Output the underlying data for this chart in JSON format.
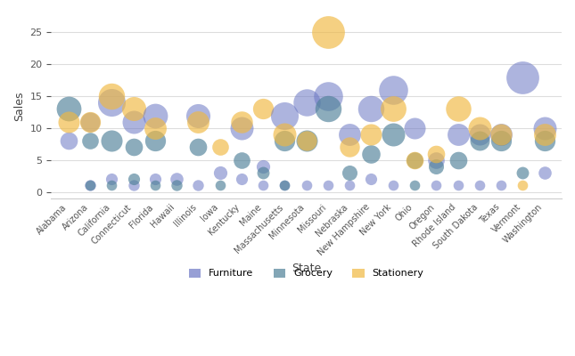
{
  "xlabel": "State",
  "ylabel": "Sales",
  "ylim": [
    -1,
    28
  ],
  "background_color": "#ffffff",
  "grid_color": "#dddddd",
  "categories": [
    "Alabama",
    "Arizona",
    "California",
    "Connecticut",
    "Florida",
    "Hawaii",
    "Illinois",
    "Iowa",
    "Kentucky",
    "Maine",
    "Massachusetts",
    "Minnesota",
    "Missouri",
    "Nebraska",
    "New Hampshire",
    "New York",
    "Ohio",
    "Oregon",
    "Rhode Island",
    "South Dakota",
    "Texas",
    "Vermont",
    "Washington"
  ],
  "furniture_color": "#6b77c4",
  "grocery_color": "#4e8098",
  "stationery_color": "#f0b840",
  "bubbles": [
    {
      "state": "Alabama",
      "category": "Furniture",
      "sales": 8,
      "size": 200
    },
    {
      "state": "Alabama",
      "category": "Grocery",
      "sales": 13,
      "size": 400
    },
    {
      "state": "Alabama",
      "category": "Stationery",
      "sales": 11,
      "size": 300
    },
    {
      "state": "Arizona",
      "category": "Furniture",
      "sales": 11,
      "size": 250
    },
    {
      "state": "Arizona",
      "category": "Grocery",
      "sales": 8,
      "size": 180
    },
    {
      "state": "Arizona",
      "category": "Stationery",
      "sales": 11,
      "size": 280
    },
    {
      "state": "Arizona",
      "category": "Furniture",
      "sales": 1,
      "size": 80
    },
    {
      "state": "Arizona",
      "category": "Grocery",
      "sales": 1,
      "size": 70
    },
    {
      "state": "California",
      "category": "Furniture",
      "sales": 14,
      "size": 500
    },
    {
      "state": "California",
      "category": "Grocery",
      "sales": 8,
      "size": 300
    },
    {
      "state": "California",
      "category": "Stationery",
      "sales": 15,
      "size": 450
    },
    {
      "state": "California",
      "category": "Furniture",
      "sales": 2,
      "size": 90
    },
    {
      "state": "California",
      "category": "Grocery",
      "sales": 1,
      "size": 70
    },
    {
      "state": "Connecticut",
      "category": "Furniture",
      "sales": 11,
      "size": 350
    },
    {
      "state": "Connecticut",
      "category": "Grocery",
      "sales": 7,
      "size": 200
    },
    {
      "state": "Connecticut",
      "category": "Stationery",
      "sales": 13,
      "size": 380
    },
    {
      "state": "Connecticut",
      "category": "Furniture",
      "sales": 1,
      "size": 80
    },
    {
      "state": "Connecticut",
      "category": "Grocery",
      "sales": 2,
      "size": 90
    },
    {
      "state": "Florida",
      "category": "Furniture",
      "sales": 12,
      "size": 400
    },
    {
      "state": "Florida",
      "category": "Grocery",
      "sales": 8,
      "size": 280
    },
    {
      "state": "Florida",
      "category": "Stationery",
      "sales": 10,
      "size": 320
    },
    {
      "state": "Florida",
      "category": "Furniture",
      "sales": 2,
      "size": 90
    },
    {
      "state": "Florida",
      "category": "Grocery",
      "sales": 1,
      "size": 70
    },
    {
      "state": "Hawaii",
      "category": "Furniture",
      "sales": 2,
      "size": 110
    },
    {
      "state": "Hawaii",
      "category": "Grocery",
      "sales": 1,
      "size": 80
    },
    {
      "state": "Illinois",
      "category": "Furniture",
      "sales": 12,
      "size": 380
    },
    {
      "state": "Illinois",
      "category": "Grocery",
      "sales": 7,
      "size": 200
    },
    {
      "state": "Illinois",
      "category": "Stationery",
      "sales": 11,
      "size": 320
    },
    {
      "state": "Illinois",
      "category": "Furniture",
      "sales": 1,
      "size": 80
    },
    {
      "state": "Iowa",
      "category": "Furniture",
      "sales": 3,
      "size": 120
    },
    {
      "state": "Iowa",
      "category": "Grocery",
      "sales": 1,
      "size": 70
    },
    {
      "state": "Iowa",
      "category": "Stationery",
      "sales": 7,
      "size": 180
    },
    {
      "state": "Kentucky",
      "category": "Furniture",
      "sales": 10,
      "size": 350
    },
    {
      "state": "Kentucky",
      "category": "Grocery",
      "sales": 5,
      "size": 180
    },
    {
      "state": "Kentucky",
      "category": "Stationery",
      "sales": 11,
      "size": 310
    },
    {
      "state": "Kentucky",
      "category": "Furniture",
      "sales": 2,
      "size": 90
    },
    {
      "state": "Maine",
      "category": "Furniture",
      "sales": 4,
      "size": 120
    },
    {
      "state": "Maine",
      "category": "Grocery",
      "sales": 3,
      "size": 100
    },
    {
      "state": "Maine",
      "category": "Stationery",
      "sales": 13,
      "size": 280
    },
    {
      "state": "Maine",
      "category": "Furniture",
      "sales": 1,
      "size": 70
    },
    {
      "state": "Massachusetts",
      "category": "Furniture",
      "sales": 12,
      "size": 500
    },
    {
      "state": "Massachusetts",
      "category": "Grocery",
      "sales": 8,
      "size": 280
    },
    {
      "state": "Massachusetts",
      "category": "Stationery",
      "sales": 9,
      "size": 350
    },
    {
      "state": "Massachusetts",
      "category": "Furniture",
      "sales": 1,
      "size": 70
    },
    {
      "state": "Massachusetts",
      "category": "Grocery",
      "sales": 1,
      "size": 70
    },
    {
      "state": "Minnesota",
      "category": "Furniture",
      "sales": 14,
      "size": 480
    },
    {
      "state": "Minnesota",
      "category": "Grocery",
      "sales": 8,
      "size": 300
    },
    {
      "state": "Minnesota",
      "category": "Stationery",
      "sales": 8,
      "size": 260
    },
    {
      "state": "Minnesota",
      "category": "Furniture",
      "sales": 1,
      "size": 70
    },
    {
      "state": "Missouri",
      "category": "Furniture",
      "sales": 15,
      "size": 550
    },
    {
      "state": "Missouri",
      "category": "Grocery",
      "sales": 13,
      "size": 450
    },
    {
      "state": "Missouri",
      "category": "Stationery",
      "sales": 25,
      "size": 700
    },
    {
      "state": "Missouri",
      "category": "Furniture",
      "sales": 1,
      "size": 70
    },
    {
      "state": "Nebraska",
      "category": "Furniture",
      "sales": 9,
      "size": 320
    },
    {
      "state": "Nebraska",
      "category": "Grocery",
      "sales": 3,
      "size": 150
    },
    {
      "state": "Nebraska",
      "category": "Stationery",
      "sales": 7,
      "size": 260
    },
    {
      "state": "Nebraska",
      "category": "Furniture",
      "sales": 1,
      "size": 70
    },
    {
      "state": "New Hampshire",
      "category": "Furniture",
      "sales": 13,
      "size": 450
    },
    {
      "state": "New Hampshire",
      "category": "Grocery",
      "sales": 6,
      "size": 220
    },
    {
      "state": "New Hampshire",
      "category": "Stationery",
      "sales": 9,
      "size": 300
    },
    {
      "state": "New Hampshire",
      "category": "Furniture",
      "sales": 2,
      "size": 90
    },
    {
      "state": "New York",
      "category": "Furniture",
      "sales": 16,
      "size": 550
    },
    {
      "state": "New York",
      "category": "Grocery",
      "sales": 9,
      "size": 350
    },
    {
      "state": "New York",
      "category": "Stationery",
      "sales": 13,
      "size": 430
    },
    {
      "state": "New York",
      "category": "Furniture",
      "sales": 1,
      "size": 70
    },
    {
      "state": "Ohio",
      "category": "Furniture",
      "sales": 10,
      "size": 300
    },
    {
      "state": "Ohio",
      "category": "Grocery",
      "sales": 5,
      "size": 180
    },
    {
      "state": "Ohio",
      "category": "Stationery",
      "sales": 5,
      "size": 200
    },
    {
      "state": "Ohio",
      "category": "Grocery",
      "sales": 1,
      "size": 70
    },
    {
      "state": "Oregon",
      "category": "Furniture",
      "sales": 5,
      "size": 180
    },
    {
      "state": "Oregon",
      "category": "Grocery",
      "sales": 4,
      "size": 150
    },
    {
      "state": "Oregon",
      "category": "Stationery",
      "sales": 6,
      "size": 200
    },
    {
      "state": "Oregon",
      "category": "Furniture",
      "sales": 1,
      "size": 70
    },
    {
      "state": "Rhode Island",
      "category": "Furniture",
      "sales": 9,
      "size": 320
    },
    {
      "state": "Rhode Island",
      "category": "Grocery",
      "sales": 5,
      "size": 200
    },
    {
      "state": "Rhode Island",
      "category": "Stationery",
      "sales": 13,
      "size": 420
    },
    {
      "state": "Rhode Island",
      "category": "Furniture",
      "sales": 1,
      "size": 70
    },
    {
      "state": "South Dakota",
      "category": "Furniture",
      "sales": 9,
      "size": 300
    },
    {
      "state": "South Dakota",
      "category": "Grocery",
      "sales": 8,
      "size": 250
    },
    {
      "state": "South Dakota",
      "category": "Stationery",
      "sales": 10,
      "size": 350
    },
    {
      "state": "South Dakota",
      "category": "Furniture",
      "sales": 1,
      "size": 70
    },
    {
      "state": "Texas",
      "category": "Furniture",
      "sales": 9,
      "size": 320
    },
    {
      "state": "Texas",
      "category": "Grocery",
      "sales": 8,
      "size": 280
    },
    {
      "state": "Texas",
      "category": "Stationery",
      "sales": 9,
      "size": 300
    },
    {
      "state": "Texas",
      "category": "Furniture",
      "sales": 1,
      "size": 70
    },
    {
      "state": "Vermont",
      "category": "Furniture",
      "sales": 18,
      "size": 700
    },
    {
      "state": "Vermont",
      "category": "Grocery",
      "sales": 3,
      "size": 100
    },
    {
      "state": "Vermont",
      "category": "Stationery",
      "sales": 1,
      "size": 70
    },
    {
      "state": "Washington",
      "category": "Furniture",
      "sales": 10,
      "size": 350
    },
    {
      "state": "Washington",
      "category": "Grocery",
      "sales": 8,
      "size": 280
    },
    {
      "state": "Washington",
      "category": "Stationery",
      "sales": 9,
      "size": 320
    },
    {
      "state": "Washington",
      "category": "Furniture",
      "sales": 3,
      "size": 110
    }
  ]
}
